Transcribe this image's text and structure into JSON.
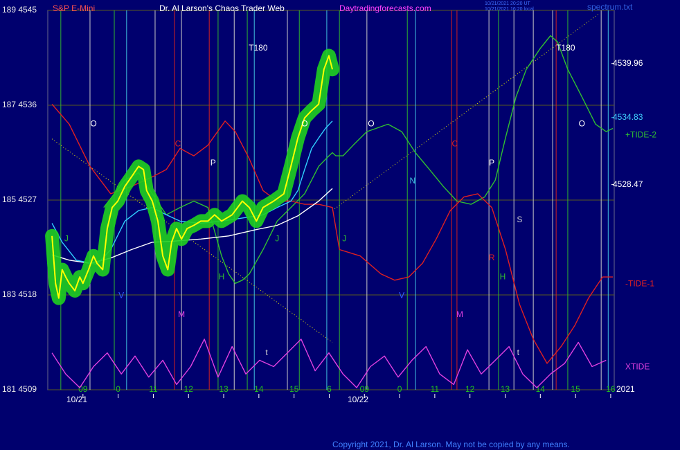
{
  "chart_data": {
    "type": "line",
    "subtitle": "S&P E-Mini",
    "title": "Dr. Al Larson's Chaos Trader Web",
    "website": "Daytradingforecasts.com",
    "timestamps": [
      "10/21/2021 20:20 UT",
      "10/21/2021 16:20 local"
    ],
    "file": "spectrum.txt",
    "copyright": "Copyright 2021, Dr. Al Larson. May not be copied by any means.",
    "dates": [
      "10/21",
      "10/22"
    ],
    "year": "2021",
    "ylim": [
      4509,
      4545
    ],
    "yticks": [
      {
        "value": 4545,
        "label": "189 4545"
      },
      {
        "value": 4536,
        "label": "187 4536"
      },
      {
        "value": 4527,
        "label": "185 4527"
      },
      {
        "value": 4518,
        "label": "183 4518"
      },
      {
        "value": 4509,
        "label": "181 4509"
      }
    ],
    "xlim": [
      0,
      16.1
    ],
    "xticks": [
      {
        "value": 1,
        "label": "09"
      },
      {
        "value": 2,
        "label": "0"
      },
      {
        "value": 3,
        "label": "11"
      },
      {
        "value": 4,
        "label": "12"
      },
      {
        "value": 5,
        "label": "13"
      },
      {
        "value": 6,
        "label": "14"
      },
      {
        "value": 7,
        "label": "15"
      },
      {
        "value": 8,
        "label": "6"
      },
      {
        "value": 9,
        "label": "09"
      },
      {
        "value": 10,
        "label": "0"
      },
      {
        "value": 11,
        "label": "11"
      },
      {
        "value": 12,
        "label": "12"
      },
      {
        "value": 13,
        "label": "13"
      },
      {
        "value": 14,
        "label": "14"
      },
      {
        "value": 15,
        "label": "15"
      },
      {
        "value": 16,
        "label": "16"
      }
    ],
    "grid": true,
    "levels": [
      {
        "value": 4539.96,
        "color": "#ffffff"
      },
      {
        "value": 4534.83,
        "color": "#40d0ff"
      },
      {
        "value": 4528.47,
        "color": "#ffffff"
      }
    ],
    "vlines": [
      {
        "x": 0.37,
        "color": "#30b030"
      },
      {
        "x": 1.2,
        "color": "#c8c8c8"
      },
      {
        "x": 1.89,
        "color": "#30b030"
      },
      {
        "x": 2.24,
        "color": "#40c0e0"
      },
      {
        "x": 3.05,
        "color": "#c8c8c8"
      },
      {
        "x": 3.6,
        "color": "#d02020"
      },
      {
        "x": 3.8,
        "color": "#c8c8c8"
      },
      {
        "x": 4.59,
        "color": "#d02020"
      },
      {
        "x": 4.84,
        "color": "#30b030"
      },
      {
        "x": 5.3,
        "color": "#c8c8c8"
      },
      {
        "x": 5.67,
        "color": "#30b030"
      },
      {
        "x": 5.87,
        "color": "#40c0e0"
      },
      {
        "x": 6.81,
        "color": "#c8c8c8"
      },
      {
        "x": 7.15,
        "color": "#30b030"
      },
      {
        "x": 7.93,
        "color": "#40c0e0"
      },
      {
        "x": 8.29,
        "color": "#30b030"
      },
      {
        "x": 9.07,
        "color": "#c8c8c8"
      },
      {
        "x": 10.22,
        "color": "#30b030"
      },
      {
        "x": 10.45,
        "color": "#40c0e0"
      },
      {
        "x": 11.48,
        "color": "#d02020"
      },
      {
        "x": 11.63,
        "color": "#d02020"
      },
      {
        "x": 12.54,
        "color": "#c8c8c8"
      },
      {
        "x": 12.81,
        "color": "#30b030"
      },
      {
        "x": 13.25,
        "color": "#c8c8c8"
      },
      {
        "x": 13.8,
        "color": "#c8c8c8"
      },
      {
        "x": 14.35,
        "color": "#c8c8c8"
      },
      {
        "x": 14.45,
        "color": "#d02020"
      },
      {
        "x": 14.78,
        "color": "#30b030"
      },
      {
        "x": 15.73,
        "color": "#c8c8c8"
      },
      {
        "x": 15.93,
        "color": "#40c0e0"
      }
    ],
    "series": [
      {
        "color": "#e8e800",
        "dash": true,
        "x": [
          0.12,
          8.09
        ],
        "values": [
          4532.8,
          4513.5
        ]
      },
      {
        "color": "#e8e800",
        "dash": true,
        "x": [
          8.09,
          15.67
        ],
        "values": [
          4526.0,
          4544.7
        ]
      },
      {
        "name": "+TIDE-2",
        "color": "#30c030",
        "x": [
          1.59,
          2.19,
          2.58,
          2.97,
          3.37,
          3.76,
          4.15,
          4.55,
          4.94,
          5.14,
          5.33,
          5.53,
          5.73,
          6.12,
          6.52,
          6.91,
          7.3,
          7.7,
          7.99,
          8.09,
          8.19,
          8.39,
          8.68,
          9.07,
          9.67,
          10.06,
          10.45,
          10.85,
          11.24,
          11.63,
          12.03,
          12.42,
          12.72,
          13.01,
          13.31,
          13.6,
          14.0,
          14.29,
          14.49,
          14.78,
          15.18,
          15.57,
          15.87,
          16.06
        ],
        "values": [
          4526.3,
          4528.9,
          4529.6,
          4527.6,
          4525.6,
          4526.3,
          4526.9,
          4526.3,
          4521.7,
          4520.0,
          4519.1,
          4519.4,
          4520.0,
          4522.3,
          4525.0,
          4526.3,
          4527.6,
          4530.2,
          4531.2,
          4531.5,
          4531.2,
          4531.2,
          4532.2,
          4533.5,
          4534.2,
          4533.5,
          4531.5,
          4529.9,
          4528.3,
          4526.9,
          4526.6,
          4527.3,
          4528.9,
          4532.9,
          4536.8,
          4539.4,
          4541.4,
          4542.6,
          4542.0,
          4539.4,
          4536.8,
          4534.2,
          4533.5,
          4533.8
        ]
      },
      {
        "name": "-TIDE-1",
        "color": "#e02020",
        "x": [
          0.12,
          0.61,
          1.2,
          1.79,
          2.38,
          2.97,
          3.37,
          3.76,
          4.15,
          4.55,
          5.04,
          5.33,
          5.73,
          6.12,
          6.52,
          6.91,
          7.3,
          7.7,
          8.09,
          8.29,
          8.88,
          9.47,
          9.86,
          10.26,
          10.65,
          11.04,
          11.44,
          11.83,
          12.22,
          12.62,
          13.01,
          13.41,
          13.8,
          14.19,
          14.59,
          14.98,
          15.37,
          15.77,
          16.06
        ],
        "values": [
          4536.1,
          4534.2,
          4530.2,
          4527.6,
          4528.3,
          4529.2,
          4529.9,
          4531.9,
          4531.2,
          4532.2,
          4534.5,
          4533.5,
          4530.9,
          4527.9,
          4526.9,
          4526.9,
          4526.6,
          4526.6,
          4526.3,
          4522.3,
          4521.7,
          4520.0,
          4519.4,
          4519.7,
          4521.0,
          4523.3,
          4526.0,
          4527.3,
          4527.6,
          4526.3,
          4522.3,
          4517.1,
          4513.8,
          4511.5,
          4513.1,
          4515.1,
          4517.7,
          4519.7,
          4519.7
        ]
      },
      {
        "name": "XTIDE",
        "color": "#e040e0",
        "x": [
          0.12,
          0.51,
          0.91,
          1.3,
          1.69,
          2.09,
          2.48,
          2.87,
          3.27,
          3.66,
          4.06,
          4.45,
          4.84,
          5.24,
          5.63,
          6.02,
          6.42,
          6.81,
          7.2,
          7.6,
          7.99,
          8.39,
          8.78,
          9.17,
          9.57,
          9.96,
          10.35,
          10.75,
          11.14,
          11.54,
          11.93,
          12.32,
          12.72,
          13.11,
          13.5,
          13.9,
          14.29,
          14.69,
          15.08,
          15.47,
          15.87
        ],
        "values": [
          4512.5,
          4510.5,
          4509.2,
          4511.2,
          4512.5,
          4510.5,
          4512.2,
          4510.2,
          4511.8,
          4509.5,
          4511.2,
          4513.8,
          4510.2,
          4513.1,
          4510.5,
          4511.8,
          4511.2,
          4512.5,
          4513.8,
          4510.8,
          4512.5,
          4510.5,
          4509.2,
          4511.2,
          4512.2,
          4510.2,
          4511.8,
          4513.1,
          4510.5,
          4509.5,
          4512.8,
          4510.5,
          4511.8,
          4513.1,
          4510.5,
          4509.2,
          4510.5,
          4511.5,
          4513.5,
          4511.2,
          4511.8
        ]
      },
      {
        "color": "#ffffff",
        "x": [
          0.12,
          0.61,
          1.2,
          1.79,
          2.38,
          2.97,
          3.56,
          4.35,
          5.14,
          5.93,
          6.52,
          7.11,
          7.7,
          8.09
        ],
        "values": [
          4521.8,
          4521.3,
          4521.0,
          4521.5,
          4522.3,
          4523.0,
          4523.1,
          4523.3,
          4523.6,
          4524.2,
          4524.6,
          4525.5,
          4526.9,
          4528.1
        ]
      },
      {
        "color": "#30d0ff",
        "x": [
          0.12,
          0.41,
          0.81,
          1.4,
          1.79,
          2.19,
          2.58,
          2.97,
          3.37,
          3.76,
          4.35,
          4.94,
          5.53,
          6.12,
          6.52,
          6.91,
          7.11,
          7.3,
          7.5,
          7.7,
          7.89,
          8.09
        ],
        "values": [
          4524.8,
          4523.0,
          4521.3,
          4520.9,
          4522.3,
          4525.0,
          4526.0,
          4526.3,
          4525.6,
          4525.0,
          4524.8,
          4525.0,
          4525.3,
          4525.6,
          4526.3,
          4526.9,
          4527.9,
          4529.9,
          4531.9,
          4532.9,
          4533.8,
          4534.5
        ]
      },
      {
        "color": "#ffff00",
        "glow": "#1fd01f",
        "x": [
          0.12,
          0.22,
          0.31,
          0.41,
          0.51,
          0.61,
          0.77,
          0.91,
          1.0,
          1.16,
          1.3,
          1.4,
          1.56,
          1.69,
          1.83,
          1.99,
          2.19,
          2.38,
          2.58,
          2.72,
          2.81,
          2.97,
          3.13,
          3.27,
          3.41,
          3.52,
          3.66,
          3.8,
          3.96,
          4.15,
          4.35,
          4.55,
          4.74,
          4.94,
          5.24,
          5.53,
          5.73,
          5.93,
          6.12,
          6.42,
          6.71,
          6.91,
          7.11,
          7.3,
          7.5,
          7.7,
          7.85,
          7.99,
          8.09
        ],
        "values": [
          4523.6,
          4519.1,
          4517.7,
          4520.4,
          4519.7,
          4519.1,
          4518.4,
          4519.7,
          4519.1,
          4520.4,
          4521.7,
          4521.0,
          4520.4,
          4524.3,
          4526.3,
          4526.9,
          4528.3,
          4529.2,
          4530.2,
          4529.9,
          4527.9,
          4526.9,
          4525.0,
          4521.7,
          4520.4,
          4523.0,
          4524.3,
          4523.3,
          4524.3,
          4524.6,
          4525.0,
          4525.0,
          4525.6,
          4525.0,
          4525.6,
          4526.9,
          4526.3,
          4525.0,
          4526.3,
          4526.9,
          4527.6,
          4530.2,
          4532.9,
          4534.8,
          4535.5,
          4536.1,
          4539.4,
          4540.7,
          4539.4
        ]
      }
    ],
    "annotations": [
      {
        "text": "T180",
        "x": 5.98,
        "y": 4541.4,
        "color": "#ffffff"
      },
      {
        "text": "T180",
        "x": 14.72,
        "y": 4541.4,
        "color": "#ffffff"
      },
      {
        "text": "O",
        "x": 1.3,
        "y": 4534.2,
        "color": "#ffffff"
      },
      {
        "text": "O",
        "x": 7.3,
        "y": 4534.2,
        "color": "#ffffff"
      },
      {
        "text": "O",
        "x": 9.19,
        "y": 4534.2,
        "color": "#ffffff"
      },
      {
        "text": "O",
        "x": 15.18,
        "y": 4534.2,
        "color": "#ffffff"
      },
      {
        "text": "C",
        "x": 3.7,
        "y": 4532.3,
        "color": "#e02020"
      },
      {
        "text": "C",
        "x": 11.57,
        "y": 4532.3,
        "color": "#e02020"
      },
      {
        "text": "P",
        "x": 4.7,
        "y": 4530.5,
        "color": "#ffffff"
      },
      {
        "text": "P",
        "x": 12.62,
        "y": 4530.5,
        "color": "#ffffff"
      },
      {
        "text": "N",
        "x": 10.37,
        "y": 4528.8,
        "color": "#40c0e0"
      },
      {
        "text": "M",
        "x": 3.8,
        "y": 4516.1,
        "color": "#e040e0"
      },
      {
        "text": "M",
        "x": 11.71,
        "y": 4516.1,
        "color": "#e040e0"
      },
      {
        "text": "H",
        "x": 4.94,
        "y": 4519.7,
        "color": "#30c030"
      },
      {
        "text": "H",
        "x": 12.93,
        "y": 4519.7,
        "color": "#30c030"
      },
      {
        "text": "R",
        "x": 12.62,
        "y": 4521.5,
        "color": "#e02020"
      },
      {
        "text": "S",
        "x": 13.41,
        "y": 4525.1,
        "color": "#d0d0d0"
      },
      {
        "text": "J",
        "x": 0.53,
        "y": 4523.3,
        "color": "#30c030"
      },
      {
        "text": "J",
        "x": 6.52,
        "y": 4523.3,
        "color": "#30c030"
      },
      {
        "text": "J",
        "x": 8.43,
        "y": 4523.3,
        "color": "#30c030"
      },
      {
        "text": "V",
        "x": 2.09,
        "y": 4517.9,
        "color": "#3060ff"
      },
      {
        "text": "V",
        "x": 10.06,
        "y": 4517.9,
        "color": "#3060ff"
      },
      {
        "text": "t",
        "x": 6.22,
        "y": 4512.5,
        "color": "#d0d0d0"
      },
      {
        "text": "t",
        "x": 13.37,
        "y": 4512.5,
        "color": "#d0d0d0"
      }
    ]
  }
}
